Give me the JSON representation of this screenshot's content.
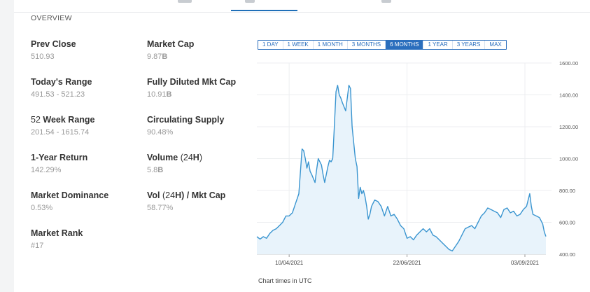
{
  "section_title": "OVERVIEW",
  "stats": {
    "prev_close": {
      "label": "Prev Close",
      "value": "510.93"
    },
    "market_cap": {
      "label": "Market Cap",
      "value_num": "9.87",
      "value_unit": "B"
    },
    "todays_range": {
      "label": "Today's Range",
      "value": "491.53 - 521.23"
    },
    "fully_diluted": {
      "label": "Fully Diluted Mkt Cap",
      "value_num": "10.91",
      "value_unit": "B"
    },
    "week52": {
      "label_prefix": "52",
      "label_main": "Week Range",
      "value": "201.54 - 1615.74"
    },
    "circulating": {
      "label": "Circulating Supply",
      "value": "90.48%"
    },
    "one_year": {
      "label": "1-Year Return",
      "value": "142.29%"
    },
    "volume": {
      "label_main": "Volume",
      "label_paren_open": "(24",
      "label_h": "H",
      "label_paren_close": ")",
      "value_num": "5.8",
      "value_unit": "B"
    },
    "dominance": {
      "label": "Market Dominance",
      "value": "0.53%"
    },
    "vol_mktcap": {
      "label_a": "Vol",
      "label_b": "(24",
      "label_c": "H",
      "label_d": ") / Mkt Cap",
      "value": "58.77%"
    },
    "market_rank": {
      "label": "Market Rank",
      "value": "#17"
    }
  },
  "range_buttons": [
    "1 DAY",
    "1 WEEK",
    "1 MONTH",
    "3 MONTHS",
    "6 MONTHS",
    "1 YEAR",
    "3 YEARS",
    "MAX"
  ],
  "active_range": "6 MONTHS",
  "footnote": "Chart times in UTC",
  "colors": {
    "line": "#3a95d0",
    "fill": "#e8f3fb",
    "accent": "#2a6ebd",
    "grid": "#eceef0"
  },
  "chart_data": {
    "type": "area",
    "title": "",
    "xlabel": "",
    "ylabel": "",
    "ylim": [
      400,
      1600
    ],
    "y_ticks": [
      "1600.00",
      "1400.00",
      "1200.00",
      "1000.00",
      "800.00",
      "600.00",
      "400.00"
    ],
    "x_ticks": [
      "10/04/2021",
      "22/06/2021",
      "03/09/2021"
    ],
    "x_start": "2021-03-21",
    "x_end": "2021-09-16",
    "grid": true,
    "series": [
      {
        "values": [
          [
            "2021-03-21",
            510
          ],
          [
            "2021-03-23",
            495
          ],
          [
            "2021-03-25",
            510
          ],
          [
            "2021-03-27",
            500
          ],
          [
            "2021-03-29",
            530
          ],
          [
            "2021-03-31",
            550
          ],
          [
            "2021-04-02",
            560
          ],
          [
            "2021-04-04",
            580
          ],
          [
            "2021-04-06",
            600
          ],
          [
            "2021-04-08",
            640
          ],
          [
            "2021-04-10",
            640
          ],
          [
            "2021-04-12",
            660
          ],
          [
            "2021-04-14",
            720
          ],
          [
            "2021-04-16",
            780
          ],
          [
            "2021-04-17",
            920
          ],
          [
            "2021-04-18",
            1060
          ],
          [
            "2021-04-19",
            1050
          ],
          [
            "2021-04-20",
            1000
          ],
          [
            "2021-04-21",
            940
          ],
          [
            "2021-04-22",
            980
          ],
          [
            "2021-04-23",
            920
          ],
          [
            "2021-04-24",
            900
          ],
          [
            "2021-04-26",
            850
          ],
          [
            "2021-04-27",
            930
          ],
          [
            "2021-04-28",
            1000
          ],
          [
            "2021-04-30",
            960
          ],
          [
            "2021-05-01",
            900
          ],
          [
            "2021-05-02",
            850
          ],
          [
            "2021-05-04",
            950
          ],
          [
            "2021-05-05",
            990
          ],
          [
            "2021-05-06",
            980
          ],
          [
            "2021-05-07",
            1000
          ],
          [
            "2021-05-08",
            1200
          ],
          [
            "2021-05-09",
            1420
          ],
          [
            "2021-05-10",
            1460
          ],
          [
            "2021-05-11",
            1400
          ],
          [
            "2021-05-12",
            1380
          ],
          [
            "2021-05-13",
            1350
          ],
          [
            "2021-05-15",
            1300
          ],
          [
            "2021-05-17",
            1460
          ],
          [
            "2021-05-18",
            1440
          ],
          [
            "2021-05-19",
            1200
          ],
          [
            "2021-05-20",
            1100
          ],
          [
            "2021-05-21",
            1000
          ],
          [
            "2021-05-22",
            950
          ],
          [
            "2021-05-23",
            750
          ],
          [
            "2021-05-24",
            820
          ],
          [
            "2021-05-25",
            780
          ],
          [
            "2021-05-26",
            800
          ],
          [
            "2021-05-27",
            760
          ],
          [
            "2021-05-28",
            700
          ],
          [
            "2021-05-29",
            620
          ],
          [
            "2021-05-30",
            650
          ],
          [
            "2021-05-31",
            700
          ],
          [
            "2021-06-02",
            740
          ],
          [
            "2021-06-04",
            730
          ],
          [
            "2021-06-06",
            700
          ],
          [
            "2021-06-08",
            640
          ],
          [
            "2021-06-10",
            700
          ],
          [
            "2021-06-12",
            640
          ],
          [
            "2021-06-14",
            650
          ],
          [
            "2021-06-16",
            620
          ],
          [
            "2021-06-18",
            580
          ],
          [
            "2021-06-20",
            560
          ],
          [
            "2021-06-22",
            500
          ],
          [
            "2021-06-24",
            510
          ],
          [
            "2021-06-26",
            490
          ],
          [
            "2021-06-28",
            520
          ],
          [
            "2021-06-30",
            540
          ],
          [
            "2021-07-02",
            560
          ],
          [
            "2021-07-04",
            540
          ],
          [
            "2021-07-06",
            560
          ],
          [
            "2021-07-08",
            520
          ],
          [
            "2021-07-10",
            510
          ],
          [
            "2021-07-12",
            490
          ],
          [
            "2021-07-14",
            470
          ],
          [
            "2021-07-16",
            450
          ],
          [
            "2021-07-18",
            430
          ],
          [
            "2021-07-20",
            420
          ],
          [
            "2021-07-22",
            450
          ],
          [
            "2021-07-24",
            480
          ],
          [
            "2021-07-26",
            520
          ],
          [
            "2021-07-28",
            560
          ],
          [
            "2021-07-30",
            570
          ],
          [
            "2021-08-01",
            580
          ],
          [
            "2021-08-03",
            560
          ],
          [
            "2021-08-05",
            600
          ],
          [
            "2021-08-07",
            640
          ],
          [
            "2021-08-09",
            660
          ],
          [
            "2021-08-11",
            690
          ],
          [
            "2021-08-13",
            680
          ],
          [
            "2021-08-15",
            670
          ],
          [
            "2021-08-17",
            660
          ],
          [
            "2021-08-19",
            630
          ],
          [
            "2021-08-21",
            680
          ],
          [
            "2021-08-23",
            690
          ],
          [
            "2021-08-25",
            660
          ],
          [
            "2021-08-27",
            670
          ],
          [
            "2021-08-29",
            640
          ],
          [
            "2021-08-31",
            650
          ],
          [
            "2021-09-02",
            680
          ],
          [
            "2021-09-04",
            700
          ],
          [
            "2021-09-06",
            780
          ],
          [
            "2021-09-07",
            700
          ],
          [
            "2021-09-08",
            650
          ],
          [
            "2021-09-10",
            640
          ],
          [
            "2021-09-12",
            630
          ],
          [
            "2021-09-14",
            590
          ],
          [
            "2021-09-15",
            540
          ],
          [
            "2021-09-16",
            511
          ]
        ]
      }
    ]
  }
}
